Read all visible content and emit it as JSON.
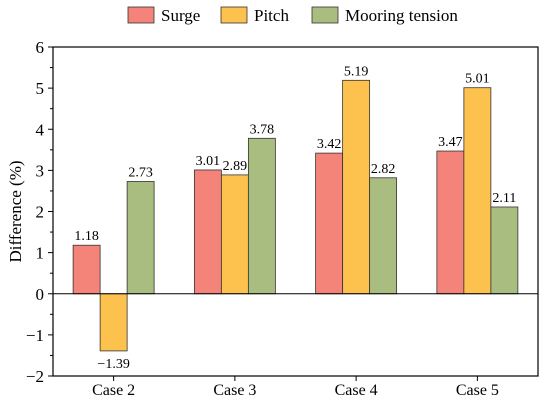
{
  "chart_data": {
    "type": "bar",
    "title": "",
    "xlabel": "",
    "ylabel": "Difference (%)",
    "categories": [
      "Case 2",
      "Case 3",
      "Case 4",
      "Case 5"
    ],
    "series": [
      {
        "name": "Surge",
        "color": "#F4837A",
        "values": [
          1.18,
          3.01,
          3.42,
          3.47
        ],
        "labels": [
          "1.18",
          "3.01",
          "3.42",
          "3.47"
        ]
      },
      {
        "name": "Pitch",
        "color": "#FDC24E",
        "values": [
          -1.39,
          2.89,
          5.19,
          5.01
        ],
        "labels": [
          "−1.39",
          "2.89",
          "5.19",
          "5.01"
        ]
      },
      {
        "name": "Mooring tension",
        "color": "#A9BD80",
        "values": [
          2.73,
          3.78,
          2.82,
          2.11
        ],
        "labels": [
          "2.73",
          "3.78",
          "2.82",
          "2.11"
        ]
      }
    ],
    "ylim": [
      -2,
      6
    ],
    "yticks": [
      "−2",
      "−1",
      "0",
      "1",
      "2",
      "3",
      "4",
      "5",
      "6"
    ],
    "grid": false,
    "legend_position": "top"
  }
}
